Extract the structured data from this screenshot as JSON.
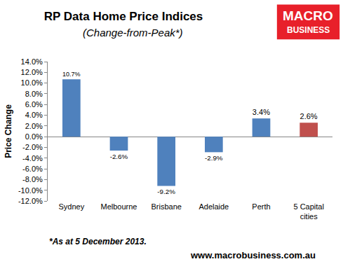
{
  "chart_data": {
    "type": "bar",
    "title": "RP Data Home Price Indices",
    "subtitle": "(Change-from-Peak*)",
    "y_label": "Price Change",
    "categories": [
      "Sydney",
      "Melbourne",
      "Brisbane",
      "Adelaide",
      "Perth",
      "5 Capital cities"
    ],
    "values": [
      10.7,
      -2.6,
      -9.2,
      -2.9,
      3.4,
      2.6
    ],
    "value_labels": [
      "10.7%",
      "-2.6%",
      "-9.2%",
      "-2.9%",
      "3.4%",
      "2.6%"
    ],
    "colors": [
      "#4f81bd",
      "#4f81bd",
      "#4f81bd",
      "#4f81bd",
      "#4f81bd",
      "#c0504d"
    ],
    "ylim": [
      -12,
      14
    ],
    "yticks": [
      {
        "value": -12,
        "label": "-12.0%"
      },
      {
        "value": -10,
        "label": "-10.0%"
      },
      {
        "value": -8,
        "label": "-8.0%"
      },
      {
        "value": -6,
        "label": "-6.0%"
      },
      {
        "value": -4,
        "label": "-4.0%"
      },
      {
        "value": -2,
        "label": "-2.0%"
      },
      {
        "value": 0,
        "label": "0.0%"
      },
      {
        "value": 2,
        "label": "2.0%"
      },
      {
        "value": 4,
        "label": "4.0%"
      },
      {
        "value": 6,
        "label": "6.0%"
      },
      {
        "value": 8,
        "label": "8.0%"
      },
      {
        "value": 10,
        "label": "10.0%"
      },
      {
        "value": 12,
        "label": "12.0%"
      },
      {
        "value": 14,
        "label": "14.0%"
      }
    ],
    "grid": false,
    "data_labels": true,
    "annotations": [
      "*As at 5 December 2013.",
      "www.macrobusiness.com.au",
      "MACRO",
      "BUSINESS"
    ]
  }
}
